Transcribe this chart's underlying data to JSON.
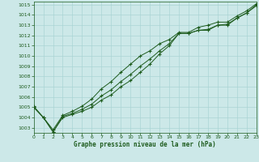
{
  "x": [
    0,
    1,
    2,
    3,
    4,
    5,
    6,
    7,
    8,
    9,
    10,
    11,
    12,
    13,
    14,
    15,
    16,
    17,
    18,
    19,
    20,
    21,
    22,
    23
  ],
  "line1": [
    1005.0,
    1004.0,
    1002.6,
    1004.1,
    1004.4,
    1004.8,
    1005.3,
    1006.1,
    1006.7,
    1007.5,
    1008.2,
    1009.0,
    1009.7,
    1010.5,
    1011.2,
    1012.2,
    1012.2,
    1012.5,
    1012.6,
    1013.0,
    1013.1,
    1013.7,
    1014.2,
    1014.9
  ],
  "line2": [
    1005.1,
    1004.0,
    1002.8,
    1004.2,
    1004.6,
    1005.1,
    1005.8,
    1006.8,
    1007.5,
    1008.4,
    1009.2,
    1010.0,
    1010.5,
    1011.2,
    1011.6,
    1012.3,
    1012.3,
    1012.8,
    1013.0,
    1013.3,
    1013.3,
    1013.9,
    1014.4,
    1015.1
  ],
  "line3": [
    1005.0,
    1004.0,
    1002.6,
    1004.0,
    1004.3,
    1004.6,
    1005.0,
    1005.7,
    1006.2,
    1007.0,
    1007.6,
    1008.4,
    1009.2,
    1010.2,
    1011.0,
    1012.2,
    1012.2,
    1012.5,
    1012.5,
    1013.0,
    1013.0,
    1013.7,
    1014.2,
    1015.0
  ],
  "bg_color": "#cce8e8",
  "grid_color": "#aad4d4",
  "line_color": "#1e5c1e",
  "xlabel": "Graphe pression niveau de la mer (hPa)",
  "ylim_min": 1002.5,
  "ylim_max": 1015.3,
  "xlim_min": 0,
  "xlim_max": 23,
  "yticks": [
    1003,
    1004,
    1005,
    1006,
    1007,
    1008,
    1009,
    1010,
    1011,
    1012,
    1013,
    1014,
    1015
  ],
  "xticks": [
    0,
    1,
    2,
    3,
    4,
    5,
    6,
    7,
    8,
    9,
    10,
    11,
    12,
    13,
    14,
    15,
    16,
    17,
    18,
    19,
    20,
    21,
    22,
    23
  ]
}
